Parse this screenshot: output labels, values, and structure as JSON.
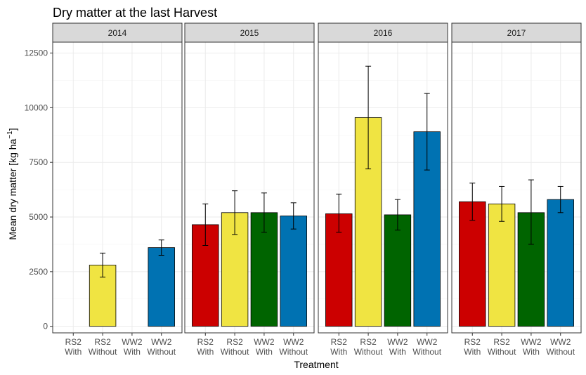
{
  "chart_data": {
    "type": "bar",
    "title": "Dry matter at the last Harvest",
    "xlabel": "Treatment",
    "ylabel": "Mean dry matter [kg  ha",
    "ylabel_sup": "−1",
    "ylabel_end": "]",
    "ylim": [
      -300,
      13000
    ],
    "yticks": [
      0,
      2500,
      5000,
      7500,
      10000,
      12500
    ],
    "ytick_labels": [
      "0",
      "2500",
      "5000",
      "7500",
      "10000",
      "12500"
    ],
    "grid": true,
    "categories": [
      {
        "line1": "RS2",
        "line2": "With"
      },
      {
        "line1": "RS2",
        "line2": "Without"
      },
      {
        "line1": "WW2",
        "line2": "With"
      },
      {
        "line1": "WW2",
        "line2": "Without"
      }
    ],
    "colors": [
      "#CC0000",
      "#F0E442",
      "#006400",
      "#0072B2"
    ],
    "panels": [
      {
        "label": "2014",
        "values": [
          null,
          2800,
          null,
          3600
        ],
        "error": [
          [
            null,
            null
          ],
          [
            2250,
            3350
          ],
          [
            null,
            null
          ],
          [
            3250,
            3950
          ]
        ]
      },
      {
        "label": "2015",
        "values": [
          4650,
          5200,
          5200,
          5050
        ],
        "error": [
          [
            3700,
            5600
          ],
          [
            4200,
            6200
          ],
          [
            4300,
            6100
          ],
          [
            4450,
            5650
          ]
        ]
      },
      {
        "label": "2016",
        "values": [
          5150,
          9550,
          5100,
          8900
        ],
        "error": [
          [
            4300,
            6050
          ],
          [
            7200,
            11900
          ],
          [
            4400,
            5800
          ],
          [
            7150,
            10650
          ]
        ]
      },
      {
        "label": "2017",
        "values": [
          5700,
          5600,
          5200,
          5800
        ],
        "error": [
          [
            4850,
            6550
          ],
          [
            4800,
            6400
          ],
          [
            3750,
            6700
          ],
          [
            5200,
            6400
          ]
        ]
      }
    ]
  }
}
